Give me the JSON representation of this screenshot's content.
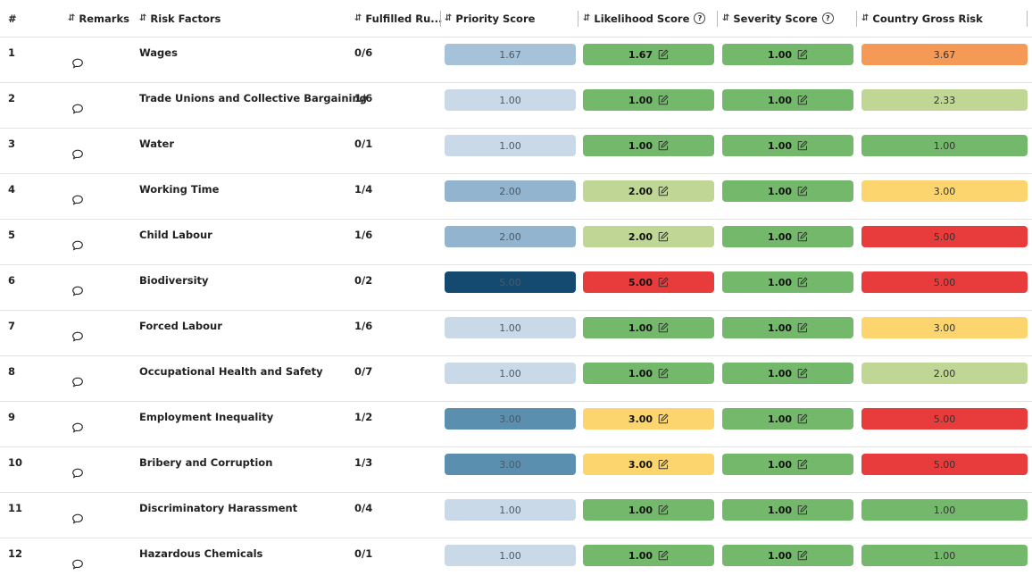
{
  "columns": [
    {
      "label": "#",
      "sortable": false,
      "help": false
    },
    {
      "label": "Remarks",
      "sortable": true,
      "help": false
    },
    {
      "label": "Risk Factors",
      "sortable": true,
      "help": false
    },
    {
      "label": "Fulfilled Ru...",
      "sortable": true,
      "help": false
    },
    {
      "label": "Priority Score",
      "sortable": true,
      "help": false
    },
    {
      "label": "Likelihood Score",
      "sortable": true,
      "help": true
    },
    {
      "label": "Severity Score",
      "sortable": true,
      "help": true
    },
    {
      "label": "Country Gross Risk",
      "sortable": true,
      "help": false
    }
  ],
  "colors": {
    "priority_1": "#c9d9e8",
    "priority_1_67": "#a6c2d8",
    "priority_2": "#93b4cf",
    "priority_3": "#5a8fb0",
    "priority_5": "#154a70",
    "green": "#74b96b",
    "lightgreen": "#bfd694",
    "yellow": "#fdd56e",
    "orange": "#f59a56",
    "red": "#e83c3c"
  },
  "rows": [
    {
      "num": "1",
      "factor": "Wages",
      "fulfilled": "0/6",
      "priority": "1.67",
      "priority_color": "#a6c2d8",
      "likelihood": "1.67",
      "likelihood_color": "#74b96b",
      "severity": "1.00",
      "severity_color": "#74b96b",
      "gross": "3.67",
      "gross_color": "#f59a56"
    },
    {
      "num": "2",
      "factor": "Trade Unions and Collective Bargaining",
      "fulfilled": "1/6",
      "priority": "1.00",
      "priority_color": "#c9d9e8",
      "likelihood": "1.00",
      "likelihood_color": "#74b96b",
      "severity": "1.00",
      "severity_color": "#74b96b",
      "gross": "2.33",
      "gross_color": "#bfd694"
    },
    {
      "num": "3",
      "factor": "Water",
      "fulfilled": "0/1",
      "priority": "1.00",
      "priority_color": "#c9d9e8",
      "likelihood": "1.00",
      "likelihood_color": "#74b96b",
      "severity": "1.00",
      "severity_color": "#74b96b",
      "gross": "1.00",
      "gross_color": "#74b96b"
    },
    {
      "num": "4",
      "factor": "Working Time",
      "fulfilled": "1/4",
      "priority": "2.00",
      "priority_color": "#93b4cf",
      "likelihood": "2.00",
      "likelihood_color": "#bfd694",
      "severity": "1.00",
      "severity_color": "#74b96b",
      "gross": "3.00",
      "gross_color": "#fdd56e"
    },
    {
      "num": "5",
      "factor": "Child Labour",
      "fulfilled": "1/6",
      "priority": "2.00",
      "priority_color": "#93b4cf",
      "likelihood": "2.00",
      "likelihood_color": "#bfd694",
      "severity": "1.00",
      "severity_color": "#74b96b",
      "gross": "5.00",
      "gross_color": "#e83c3c"
    },
    {
      "num": "6",
      "factor": "Biodiversity",
      "fulfilled": "0/2",
      "priority": "5.00",
      "priority_color": "#154a70",
      "likelihood": "5.00",
      "likelihood_color": "#e83c3c",
      "severity": "1.00",
      "severity_color": "#74b96b",
      "gross": "5.00",
      "gross_color": "#e83c3c"
    },
    {
      "num": "7",
      "factor": "Forced Labour",
      "fulfilled": "1/6",
      "priority": "1.00",
      "priority_color": "#c9d9e8",
      "likelihood": "1.00",
      "likelihood_color": "#74b96b",
      "severity": "1.00",
      "severity_color": "#74b96b",
      "gross": "3.00",
      "gross_color": "#fdd56e"
    },
    {
      "num": "8",
      "factor": "Occupational Health and Safety",
      "fulfilled": "0/7",
      "priority": "1.00",
      "priority_color": "#c9d9e8",
      "likelihood": "1.00",
      "likelihood_color": "#74b96b",
      "severity": "1.00",
      "severity_color": "#74b96b",
      "gross": "2.00",
      "gross_color": "#bfd694"
    },
    {
      "num": "9",
      "factor": "Employment Inequality",
      "fulfilled": "1/2",
      "priority": "3.00",
      "priority_color": "#5a8fb0",
      "likelihood": "3.00",
      "likelihood_color": "#fdd56e",
      "severity": "1.00",
      "severity_color": "#74b96b",
      "gross": "5.00",
      "gross_color": "#e83c3c"
    },
    {
      "num": "10",
      "factor": "Bribery and Corruption",
      "fulfilled": "1/3",
      "priority": "3.00",
      "priority_color": "#5a8fb0",
      "likelihood": "3.00",
      "likelihood_color": "#fdd56e",
      "severity": "1.00",
      "severity_color": "#74b96b",
      "gross": "5.00",
      "gross_color": "#e83c3c"
    },
    {
      "num": "11",
      "factor": "Discriminatory Harassment",
      "fulfilled": "0/4",
      "priority": "1.00",
      "priority_color": "#c9d9e8",
      "likelihood": "1.00",
      "likelihood_color": "#74b96b",
      "severity": "1.00",
      "severity_color": "#74b96b",
      "gross": "1.00",
      "gross_color": "#74b96b"
    },
    {
      "num": "12",
      "factor": "Hazardous Chemicals",
      "fulfilled": "0/1",
      "priority": "1.00",
      "priority_color": "#c9d9e8",
      "likelihood": "1.00",
      "likelihood_color": "#74b96b",
      "severity": "1.00",
      "severity_color": "#74b96b",
      "gross": "1.00",
      "gross_color": "#74b96b"
    }
  ]
}
